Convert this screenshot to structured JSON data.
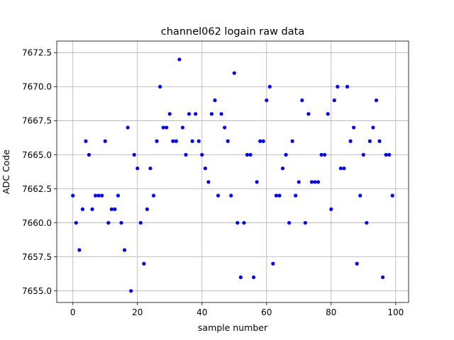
{
  "chart_data": {
    "type": "scatter",
    "title": "channel062 logain raw data",
    "xlabel": "sample number",
    "ylabel": "ADC Code",
    "xlim": [
      -5,
      104
    ],
    "ylim": [
      7654.15,
      7673.35
    ],
    "xticks": [
      0,
      20,
      40,
      60,
      80,
      100
    ],
    "xtick_labels": [
      "0",
      "20",
      "40",
      "60",
      "80",
      "100"
    ],
    "yticks": [
      7655.0,
      7657.5,
      7660.0,
      7662.5,
      7665.0,
      7667.5,
      7670.0,
      7672.5
    ],
    "ytick_labels": [
      "7655.0",
      "7657.5",
      "7660.0",
      "7662.5",
      "7665.0",
      "7667.5",
      "7670.0",
      "7672.5"
    ],
    "grid": true,
    "marker_color": "#0000ff",
    "series": [
      {
        "x": [
          0,
          1,
          2,
          3,
          4,
          5,
          6,
          7,
          8,
          9,
          10,
          11,
          12,
          13,
          14,
          15,
          16,
          17,
          18,
          19,
          20,
          21,
          22,
          23,
          24,
          25,
          26,
          27,
          28,
          29,
          30,
          31,
          32,
          33,
          34,
          35,
          36,
          37,
          38,
          39,
          40,
          41,
          42,
          43,
          44,
          45,
          46,
          47,
          48,
          49,
          50,
          51,
          52,
          53,
          54,
          55,
          56,
          57,
          58,
          59,
          60,
          61,
          62,
          63,
          64,
          65,
          66,
          67,
          68,
          69,
          70,
          71,
          72,
          73,
          74,
          75,
          76,
          77,
          78,
          79,
          80,
          81,
          82,
          83,
          84,
          85,
          86,
          87,
          88,
          89,
          90,
          91,
          92,
          93,
          94,
          95,
          96,
          97,
          98,
          99
        ],
        "y": [
          7662,
          7660,
          7658,
          7661,
          7666,
          7665,
          7661,
          7662,
          7662,
          7662,
          7666,
          7660,
          7661,
          7661,
          7662,
          7660,
          7658,
          7667,
          7655,
          7665,
          7664,
          7660,
          7657,
          7661,
          7664,
          7662,
          7666,
          7670,
          7667,
          7667,
          7668,
          7666,
          7666,
          7672,
          7667,
          7665,
          7668,
          7666,
          7668,
          7666,
          7665,
          7664,
          7663,
          7668,
          7669,
          7662,
          7668,
          7667,
          7666,
          7662,
          7671,
          7660,
          7656,
          7660,
          7665,
          7665,
          7656,
          7663,
          7666,
          7666,
          7669,
          7670,
          7657,
          7662,
          7662,
          7664,
          7665,
          7660,
          7666,
          7662,
          7663,
          7669,
          7660,
          7668,
          7663,
          7663,
          7663,
          7665,
          7665,
          7668,
          7661,
          7669,
          7670,
          7664,
          7664,
          7670,
          7666,
          7667,
          7657,
          7662,
          7665,
          7660,
          7666,
          7667,
          7669,
          7666,
          7656,
          7665,
          7665,
          7662
        ]
      }
    ]
  }
}
